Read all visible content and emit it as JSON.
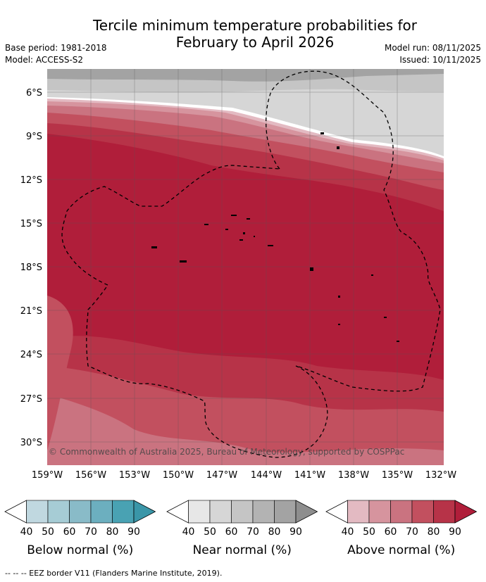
{
  "title_line1": "Tercile minimum temperature probabilities for",
  "title_line2": "February to April 2026",
  "base_period": "Base period: 1981-2018",
  "model": "Model: ACCESS-S2",
  "model_run": "Model run: 08/11/2025",
  "issued": "Issued: 10/11/2025",
  "copyright": "© Commonwealth of Australia 2025, Bureau of Meteorology, supported by COSPPac",
  "footnote": "--  --  -- EEZ border V11 (Flanders Marine Institute, 2019).",
  "lat_labels": [
    "6°S",
    "9°S",
    "12°S",
    "15°S",
    "18°S",
    "21°S",
    "24°S",
    "27°S",
    "30°S"
  ],
  "lon_labels": [
    "159°W",
    "156°W",
    "153°W",
    "150°W",
    "147°W",
    "144°W",
    "141°W",
    "138°W",
    "135°W",
    "132°W"
  ],
  "colorbars": [
    {
      "title": "Below normal (%)",
      "ticks": [
        "40",
        "50",
        "60",
        "70",
        "80",
        "90"
      ],
      "colors": [
        "#ffffff",
        "#c0d8e0",
        "#a6ccd5",
        "#89bbc8",
        "#6cafbf",
        "#49a2b3",
        "#3a96a8"
      ]
    },
    {
      "title": "Near normal (%)",
      "ticks": [
        "40",
        "50",
        "60",
        "70",
        "80",
        "90"
      ],
      "colors": [
        "#ffffff",
        "#e7e7e7",
        "#d6d6d6",
        "#c5c5c5",
        "#b3b3b3",
        "#a3a3a3",
        "#8e8e8e"
      ]
    },
    {
      "title": "Above normal (%)",
      "ticks": [
        "40",
        "50",
        "60",
        "70",
        "80",
        "90"
      ],
      "colors": [
        "#ffffff",
        "#e3bac2",
        "#d6949e",
        "#ca7380",
        "#c2505f",
        "#b73348",
        "#b01e3a"
      ]
    }
  ]
}
